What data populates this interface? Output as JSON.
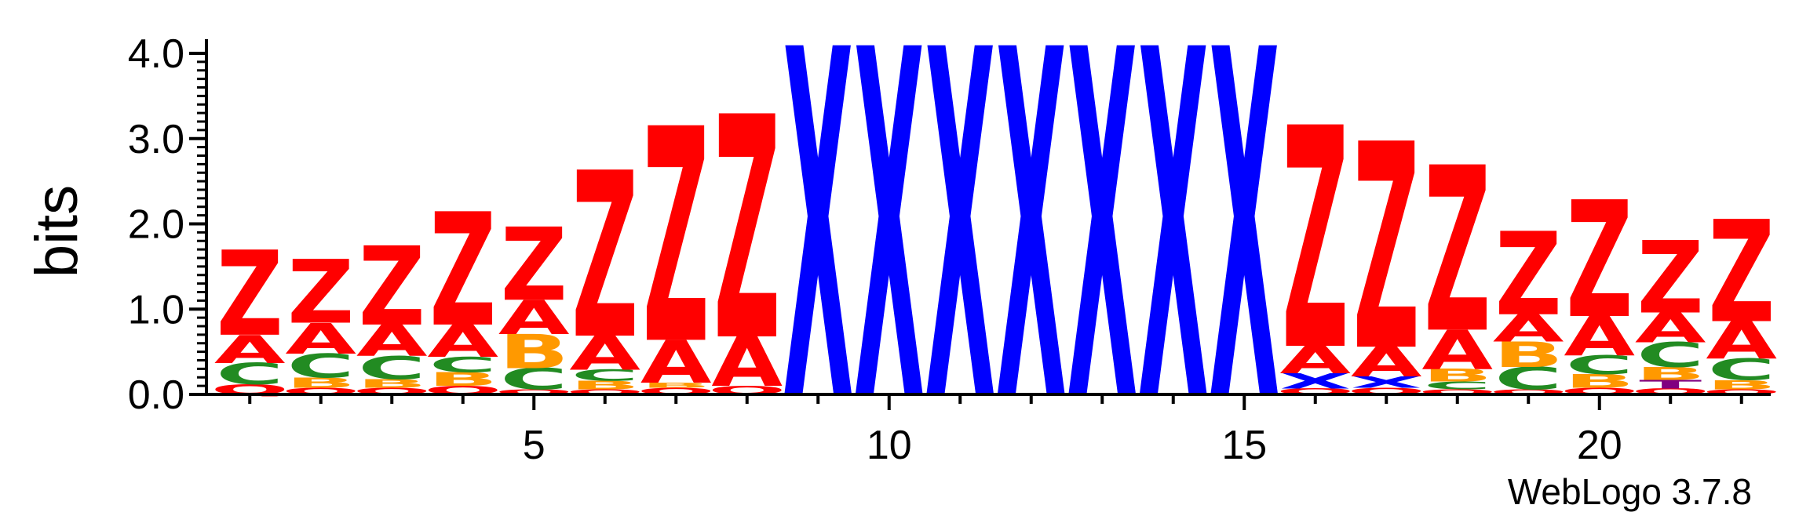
{
  "chart_data": {
    "type": "sequence-logo",
    "ylabel": "bits",
    "ylim": [
      0,
      4.0
    ],
    "yticks": [
      "0.0",
      "1.0",
      "2.0",
      "3.0",
      "4.0"
    ],
    "xticks": [
      5,
      10,
      15,
      20
    ],
    "credit": "WebLogo 3.7.8",
    "colors": {
      "Z": "#ff0000",
      "A": "#ff0000",
      "C": "#228b22",
      "B": "#ff9900",
      "X": "#0000ff",
      "Q": "#ff0000",
      "D": "#ff0000",
      "T": "#800080"
    },
    "positions": [
      {
        "pos": 1,
        "stack": [
          {
            "l": "Q",
            "h": 0.12
          },
          {
            "l": "C",
            "h": 0.25
          },
          {
            "l": "A",
            "h": 0.33
          },
          {
            "l": "Z",
            "h": 1.0
          }
        ]
      },
      {
        "pos": 2,
        "stack": [
          {
            "l": "Q",
            "h": 0.08
          },
          {
            "l": "B",
            "h": 0.12
          },
          {
            "l": "C",
            "h": 0.28
          },
          {
            "l": "A",
            "h": 0.36
          },
          {
            "l": "Z",
            "h": 0.75
          }
        ]
      },
      {
        "pos": 3,
        "stack": [
          {
            "l": "Q",
            "h": 0.08
          },
          {
            "l": "B",
            "h": 0.1
          },
          {
            "l": "C",
            "h": 0.27
          },
          {
            "l": "A",
            "h": 0.37
          },
          {
            "l": "Z",
            "h": 0.93
          }
        ]
      },
      {
        "pos": 4,
        "stack": [
          {
            "l": "Q",
            "h": 0.1
          },
          {
            "l": "B",
            "h": 0.16
          },
          {
            "l": "C",
            "h": 0.18
          },
          {
            "l": "A",
            "h": 0.38
          },
          {
            "l": "Z",
            "h": 1.33
          }
        ]
      },
      {
        "pos": 5,
        "stack": [
          {
            "l": "Q",
            "h": 0.06
          },
          {
            "l": "C",
            "h": 0.25
          },
          {
            "l": "B",
            "h": 0.4
          },
          {
            "l": "A",
            "h": 0.4
          },
          {
            "l": "Z",
            "h": 0.86
          }
        ]
      },
      {
        "pos": 6,
        "stack": [
          {
            "l": "Q",
            "h": 0.06
          },
          {
            "l": "B",
            "h": 0.1
          },
          {
            "l": "C",
            "h": 0.13
          },
          {
            "l": "A",
            "h": 0.4
          },
          {
            "l": "Z",
            "h": 1.95
          }
        ]
      },
      {
        "pos": 7,
        "stack": [
          {
            "l": "Q",
            "h": 0.08
          },
          {
            "l": "B",
            "h": 0.06
          },
          {
            "l": "A",
            "h": 0.5
          },
          {
            "l": "Z",
            "h": 2.52
          }
        ]
      },
      {
        "pos": 8,
        "stack": [
          {
            "l": "Q",
            "h": 0.1
          },
          {
            "l": "A",
            "h": 0.58
          },
          {
            "l": "Z",
            "h": 2.62
          }
        ]
      },
      {
        "pos": 9,
        "stack": [
          {
            "l": "X",
            "h": 4.1
          }
        ]
      },
      {
        "pos": 10,
        "stack": [
          {
            "l": "X",
            "h": 4.1
          }
        ]
      },
      {
        "pos": 11,
        "stack": [
          {
            "l": "X",
            "h": 4.1
          }
        ]
      },
      {
        "pos": 12,
        "stack": [
          {
            "l": "X",
            "h": 4.1
          }
        ]
      },
      {
        "pos": 13,
        "stack": [
          {
            "l": "X",
            "h": 4.1
          }
        ]
      },
      {
        "pos": 14,
        "stack": [
          {
            "l": "X",
            "h": 4.1
          }
        ]
      },
      {
        "pos": 15,
        "stack": [
          {
            "l": "X",
            "h": 4.1
          }
        ]
      },
      {
        "pos": 16,
        "stack": [
          {
            "l": "Q",
            "h": 0.07
          },
          {
            "l": "X",
            "h": 0.18
          },
          {
            "l": "A",
            "h": 0.32
          },
          {
            "l": "Z",
            "h": 2.6
          }
        ]
      },
      {
        "pos": 17,
        "stack": [
          {
            "l": "Q",
            "h": 0.08
          },
          {
            "l": "X",
            "h": 0.13
          },
          {
            "l": "A",
            "h": 0.35
          },
          {
            "l": "Z",
            "h": 2.42
          }
        ]
      },
      {
        "pos": 18,
        "stack": [
          {
            "l": "Q",
            "h": 0.06
          },
          {
            "l": "C",
            "h": 0.09
          },
          {
            "l": "B",
            "h": 0.15
          },
          {
            "l": "A",
            "h": 0.46
          },
          {
            "l": "Z",
            "h": 1.94
          }
        ]
      },
      {
        "pos": 19,
        "stack": [
          {
            "l": "Q",
            "h": 0.06
          },
          {
            "l": "C",
            "h": 0.26
          },
          {
            "l": "B",
            "h": 0.3
          },
          {
            "l": "A",
            "h": 0.32
          },
          {
            "l": "Z",
            "h": 0.98
          }
        ]
      },
      {
        "pos": 20,
        "stack": [
          {
            "l": "Q",
            "h": 0.08
          },
          {
            "l": "B",
            "h": 0.16
          },
          {
            "l": "C",
            "h": 0.22
          },
          {
            "l": "A",
            "h": 0.46
          },
          {
            "l": "Z",
            "h": 1.37
          }
        ]
      },
      {
        "pos": 21,
        "stack": [
          {
            "l": "Q",
            "h": 0.07
          },
          {
            "l": "T",
            "h": 0.1
          },
          {
            "l": "B",
            "h": 0.15
          },
          {
            "l": "C",
            "h": 0.29
          },
          {
            "l": "A",
            "h": 0.35
          },
          {
            "l": "Z",
            "h": 0.85
          }
        ]
      },
      {
        "pos": 22,
        "stack": [
          {
            "l": "Q",
            "h": 0.06
          },
          {
            "l": "B",
            "h": 0.11
          },
          {
            "l": "C",
            "h": 0.25
          },
          {
            "l": "A",
            "h": 0.44
          },
          {
            "l": "Z",
            "h": 1.2
          }
        ]
      }
    ]
  }
}
